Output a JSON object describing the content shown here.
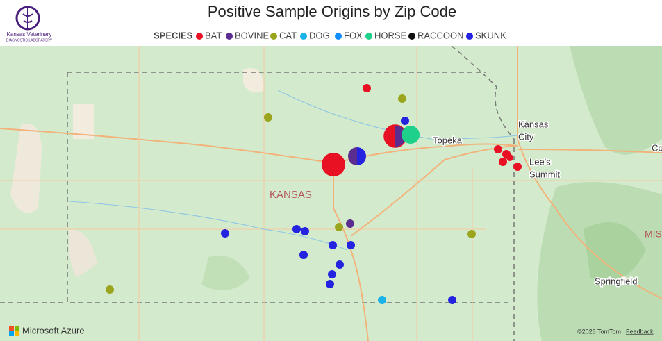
{
  "header": {
    "title": "Positive Sample Origins by Zip Code",
    "logo_lines": [
      "Kansas Veterinary",
      "DIAGNOSTIC LABORATORY"
    ]
  },
  "legend": {
    "title": "SPECIES",
    "items": [
      {
        "name": "BAT",
        "color": "#e81123"
      },
      {
        "name": "BOVINE",
        "color": "#5c2d91"
      },
      {
        "name": "CAT",
        "color": "#9aa51d"
      },
      {
        "name": "DOG",
        "color": "#1ab2e8"
      },
      {
        "name": "FOX",
        "color": "#118dff"
      },
      {
        "name": "HORSE",
        "color": "#1fd08a"
      },
      {
        "name": "RACCOON",
        "color": "#111111"
      },
      {
        "name": "SKUNK",
        "color": "#2323e0"
      }
    ]
  },
  "map": {
    "labels": {
      "topeka": "Topeka",
      "kansas_city": [
        "Kansas",
        "City"
      ],
      "lees_summit": [
        "Lee's",
        "Summit"
      ],
      "state": "KANSAS",
      "springfield": "Springfield",
      "mis": "MIS",
      "co": "Co"
    }
  },
  "footer": {
    "brand": "Microsoft Azure",
    "copyright": "©2026 TomTom",
    "feedback": "Feedback"
  }
}
